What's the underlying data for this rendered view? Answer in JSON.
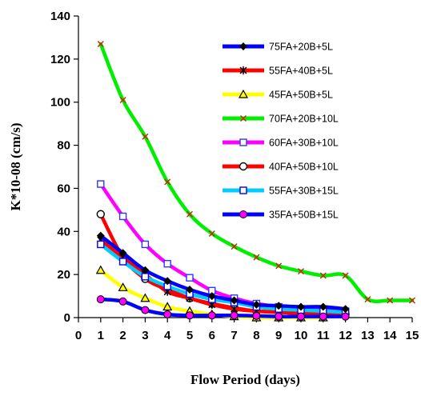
{
  "chart_data": {
    "type": "line",
    "xlabel": "Flow Period (days)",
    "ylabel": "K*10-08 (cm/s)",
    "xlim": [
      0,
      15
    ],
    "ylim": [
      0,
      140
    ],
    "x_ticks": [
      "0",
      "1",
      "2",
      "3",
      "4",
      "5",
      "6",
      "7",
      "8",
      "9",
      "10",
      "11",
      "12",
      "13",
      "14",
      "15"
    ],
    "y_ticks": [
      "0",
      "20",
      "40",
      "60",
      "80",
      "100",
      "120",
      "140"
    ],
    "grid": false,
    "legend_position": "right",
    "series": [
      {
        "name": "75FA+20B+5L",
        "color": "#0000ff",
        "marker": "diamond",
        "marker_color": "#000000",
        "x": [
          1,
          2,
          3,
          4,
          5,
          6,
          7,
          8,
          9,
          10,
          11,
          12
        ],
        "y": [
          38,
          30,
          22,
          17,
          13,
          10,
          8,
          6,
          5.5,
          5,
          5,
          4
        ]
      },
      {
        "name": "55FA+40B+5L",
        "color": "#ff0000",
        "marker": "star",
        "marker_color": "#000000",
        "x": [
          1,
          2,
          3,
          4,
          5,
          6,
          7,
          8,
          9,
          10,
          11,
          12
        ],
        "y": [
          36,
          28,
          20,
          12,
          9,
          6,
          4,
          3,
          2.5,
          2,
          2,
          2
        ]
      },
      {
        "name": "45FA+50B+5L",
        "color": "#ffff00",
        "marker": "triangle",
        "marker_color": "#000000",
        "x": [
          1,
          2,
          3,
          4,
          5,
          6,
          7,
          8,
          9,
          10,
          11
        ],
        "y": [
          22,
          14,
          9,
          5,
          3,
          1.5,
          0.5,
          0,
          0,
          0,
          0
        ]
      },
      {
        "name": "70FA+20B+10L",
        "color": "#00ee00",
        "marker": "x",
        "marker_color": "#cc2200",
        "x": [
          1,
          2,
          3,
          4,
          5,
          6,
          7,
          8,
          9,
          10,
          11,
          12,
          13,
          14,
          15
        ],
        "y": [
          127,
          101,
          84,
          63,
          48,
          39,
          33,
          28,
          24,
          21.5,
          19.5,
          19.5,
          8.5,
          8,
          8
        ]
      },
      {
        "name": "60FA+30B+10L",
        "color": "#ff00ff",
        "marker": "square",
        "marker_color": "#3333ff",
        "x": [
          1,
          2,
          3,
          4,
          5,
          6,
          7,
          8,
          9,
          10,
          11,
          12
        ],
        "y": [
          62,
          47,
          34,
          25,
          18.5,
          12.5,
          9,
          6.5,
          5,
          4,
          3.5,
          3
        ]
      },
      {
        "name": "40FA+50B+10L",
        "color": "#ff0000",
        "marker": "circle",
        "marker_color": "#000000",
        "x": [
          1,
          2,
          3,
          4,
          5,
          6,
          7,
          8,
          9,
          10,
          11,
          12
        ],
        "y": [
          48,
          28,
          18,
          13,
          9,
          6.5,
          4.5,
          3,
          2.5,
          2,
          2,
          1.5
        ]
      },
      {
        "name": "55FA+30B+15L",
        "color": "#00ccff",
        "marker": "square",
        "marker_color": "#0000ff",
        "x": [
          1,
          2,
          3,
          4,
          5,
          6,
          7,
          8,
          9,
          10,
          11,
          12
        ],
        "y": [
          34,
          26,
          19,
          14.5,
          11,
          8.5,
          7,
          5,
          4,
          3.5,
          3,
          2.5
        ]
      },
      {
        "name": "35FA+50B+15L",
        "color": "#0000ff",
        "marker": "circle-filled",
        "marker_color": "#ff00ff",
        "x": [
          1,
          2,
          3,
          4,
          5,
          6,
          7,
          8,
          9,
          10,
          11,
          12
        ],
        "y": [
          8.5,
          7.5,
          3.5,
          1.5,
          1,
          1,
          1,
          0.8,
          0.5,
          0.5,
          0.5,
          0.5
        ]
      }
    ]
  }
}
